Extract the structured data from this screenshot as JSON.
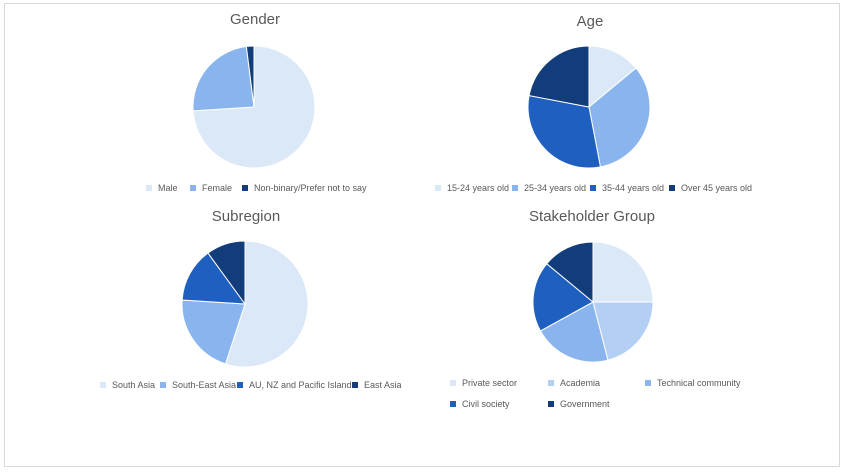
{
  "chart_data": [
    {
      "id": "gender",
      "type": "pie",
      "title": "Gender",
      "categories": [
        "Male",
        "Female",
        "Non-binary/Prefer not to say"
      ],
      "values": [
        74,
        24,
        2
      ],
      "colors": [
        "#dae8f8",
        "#8ab4ee",
        "#123c7a"
      ],
      "legend": "bottom"
    },
    {
      "id": "age",
      "type": "pie",
      "title": "Age",
      "categories": [
        "15-24 years old",
        "25-34 years old",
        "35-44 years old",
        "Over 45 years old"
      ],
      "values": [
        14,
        33,
        31,
        22
      ],
      "colors": [
        "#dae8f8",
        "#8ab4ee",
        "#1f5fc0",
        "#123c7a"
      ],
      "legend": "bottom"
    },
    {
      "id": "subregion",
      "type": "pie",
      "title": "Subregion",
      "categories": [
        "South Asia",
        "South-East Asia",
        "AU, NZ and Pacific Islands",
        "East Asia"
      ],
      "values": [
        55,
        21,
        14,
        10
      ],
      "colors": [
        "#dae8f8",
        "#8ab4ee",
        "#1f5fc0",
        "#123c7a"
      ],
      "legend": "bottom"
    },
    {
      "id": "stakeholder",
      "type": "pie",
      "title": "Stakeholder Group",
      "categories": [
        "Private sector",
        "Academia",
        "Technical community",
        "Civil society",
        "Government"
      ],
      "values": [
        25,
        21,
        21,
        19,
        14
      ],
      "colors": [
        "#dae8f8",
        "#b3cff4",
        "#8ab4ee",
        "#1f5fc0",
        "#123c7a"
      ],
      "legend": "bottom"
    }
  ]
}
